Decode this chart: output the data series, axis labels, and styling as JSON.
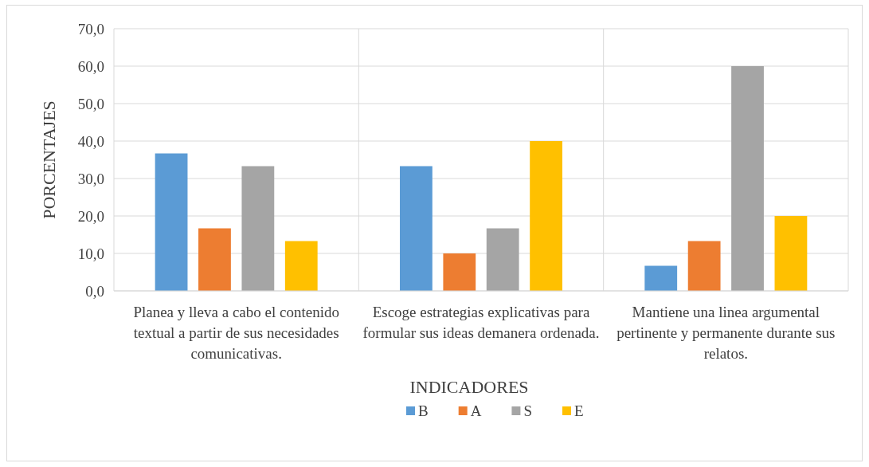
{
  "chart_data": {
    "type": "bar",
    "xlabel": "INDICADORES",
    "ylabel": "PORCENTAJES",
    "categories": [
      "Planea y lleva a cabo el contenido textual a partir de sus necesidades comunicativas.",
      "Escoge estrategias explicativas para formular sus ideas demanera ordenada.",
      "Mantiene una linea argumental pertinente y permanente durante sus relatos."
    ],
    "series": [
      {
        "name": "B",
        "color": "#5b9bd5",
        "values": [
          36.7,
          33.3,
          6.7
        ]
      },
      {
        "name": "A",
        "color": "#ed7d31",
        "values": [
          16.7,
          10.0,
          13.3
        ]
      },
      {
        "name": "S",
        "color": "#a5a5a5",
        "values": [
          33.3,
          16.7,
          60.0
        ]
      },
      {
        "name": "E",
        "color": "#ffc000",
        "values": [
          13.3,
          40.0,
          20.0
        ]
      }
    ],
    "ylim": [
      0,
      70
    ],
    "yticks": [
      {
        "value": 0,
        "label": "0,0"
      },
      {
        "value": 10,
        "label": "10,0"
      },
      {
        "value": 20,
        "label": "20,0"
      },
      {
        "value": 30,
        "label": "30,0"
      },
      {
        "value": 40,
        "label": "40,0"
      },
      {
        "value": 50,
        "label": "50,0"
      },
      {
        "value": 60,
        "label": "60,0"
      },
      {
        "value": 70,
        "label": "70,0"
      }
    ],
    "grid": true,
    "legend": "bottom"
  }
}
